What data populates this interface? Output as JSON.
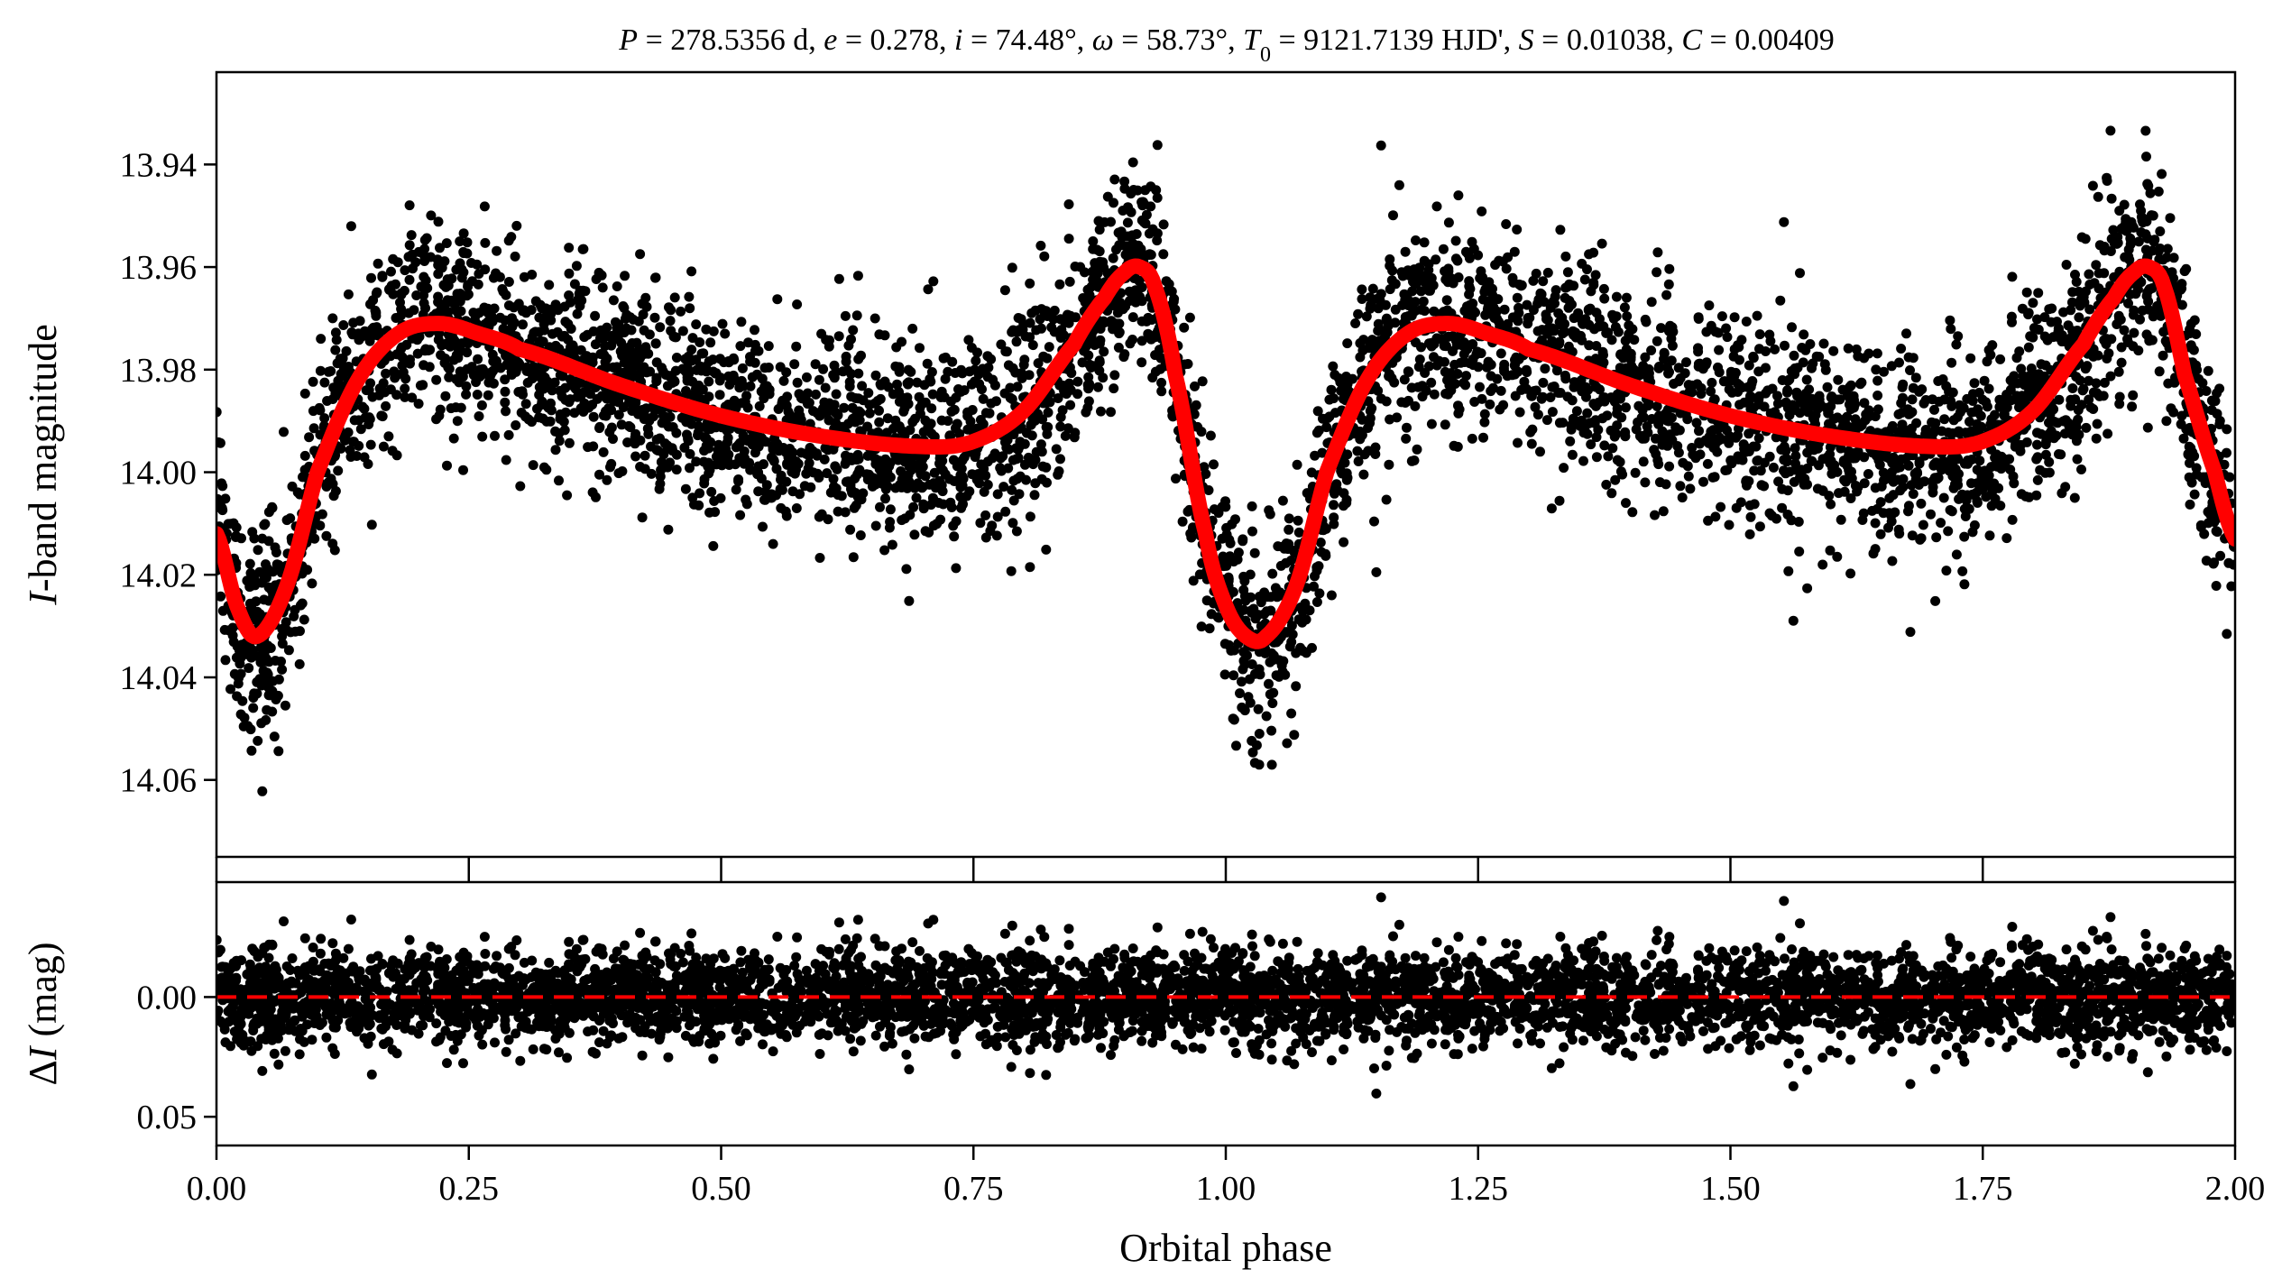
{
  "figure": {
    "title": "P = 278.5356 d, e = 0.278, i = 74.48°, ω = 58.73°, T₀ = 9121.7139 HJD', S = 0.01038, C = 0.00409",
    "title_parts": {
      "period": "278.5356 d",
      "eccentricity": "0.278",
      "inclination": "74.48°",
      "omega": "58.73°",
      "t0": "9121.7139 HJD'",
      "s": "0.01038",
      "c": "0.00409"
    },
    "colors": {
      "data": "#000000",
      "model": "#ff0000",
      "residual_zero": "#ff0000",
      "frame": "#000000"
    }
  },
  "chart_data": [
    {
      "type": "scatter",
      "panel": "top",
      "title": "P = 278.5356 d, e = 0.278, i = 74.48°, ω = 58.73°, T₀ = 9121.7139 HJD', S = 0.01038, C = 0.00409",
      "xlabel": "",
      "ylabel": "I-band magnitude",
      "xlim": [
        0.0,
        2.0
      ],
      "ylim": [
        14.075,
        13.922
      ],
      "y_inverted": true,
      "yticks": [
        "13.94",
        "13.96",
        "13.98",
        "14.00",
        "14.02",
        "14.04",
        "14.06"
      ],
      "ytick_values": [
        13.94,
        13.96,
        13.98,
        14.0,
        14.02,
        14.04,
        14.06
      ],
      "grid": false,
      "series": [
        {
          "style": "points",
          "description_values_note": "dense photometry, scatter ~0.01 mag around model",
          "envelope_sigma": 0.0095
        },
        {
          "style": "line",
          "color": "#ff0000",
          "x": [
            0.0,
            0.02,
            0.04,
            0.07,
            0.1,
            0.14,
            0.18,
            0.22,
            0.26,
            0.3,
            0.4,
            0.5,
            0.6,
            0.7,
            0.75,
            0.8,
            0.85,
            0.88,
            0.9,
            0.915,
            0.93,
            0.95,
            0.98,
            1.0,
            1.02,
            1.04,
            1.07,
            1.1,
            1.14,
            1.18,
            1.22,
            1.26,
            1.3,
            1.4,
            1.5,
            1.6,
            1.7,
            1.75,
            1.8,
            1.85,
            1.88,
            1.9,
            1.915,
            1.93,
            1.95,
            1.98,
            2.0
          ],
          "values": [
            14.012,
            14.026,
            14.032,
            14.022,
            14.0,
            13.982,
            13.973,
            13.971,
            13.973,
            13.976,
            13.983,
            13.989,
            13.993,
            13.995,
            13.994,
            13.988,
            13.975,
            13.966,
            13.961,
            13.96,
            13.964,
            13.981,
            14.012,
            14.026,
            14.032,
            14.032,
            14.022,
            14.0,
            13.982,
            13.973,
            13.971,
            13.973,
            13.976,
            13.983,
            13.989,
            13.993,
            13.995,
            13.994,
            13.988,
            13.975,
            13.966,
            13.961,
            13.96,
            13.964,
            13.981,
            14.0,
            14.013
          ]
        }
      ]
    },
    {
      "type": "scatter",
      "panel": "bottom",
      "xlabel": "Orbital phase",
      "ylabel": "ΔI (mag)",
      "xlim": [
        0.0,
        2.0
      ],
      "ylim": [
        0.062,
        -0.048
      ],
      "y_inverted": true,
      "xticks": [
        "0.00",
        "0.25",
        "0.50",
        "0.75",
        "1.00",
        "1.25",
        "1.50",
        "1.75",
        "2.00"
      ],
      "xtick_values": [
        0.0,
        0.25,
        0.5,
        0.75,
        1.0,
        1.25,
        1.5,
        1.75,
        2.0
      ],
      "yticks": [
        "0.00",
        "0.05"
      ],
      "ytick_values": [
        0.0,
        0.05
      ],
      "grid": false,
      "series": [
        {
          "style": "points",
          "envelope_sigma": 0.0095
        },
        {
          "style": "dashed-line",
          "color": "#ff0000",
          "x": [
            0.0,
            2.0
          ],
          "values": [
            0.0,
            0.0
          ]
        }
      ]
    }
  ]
}
